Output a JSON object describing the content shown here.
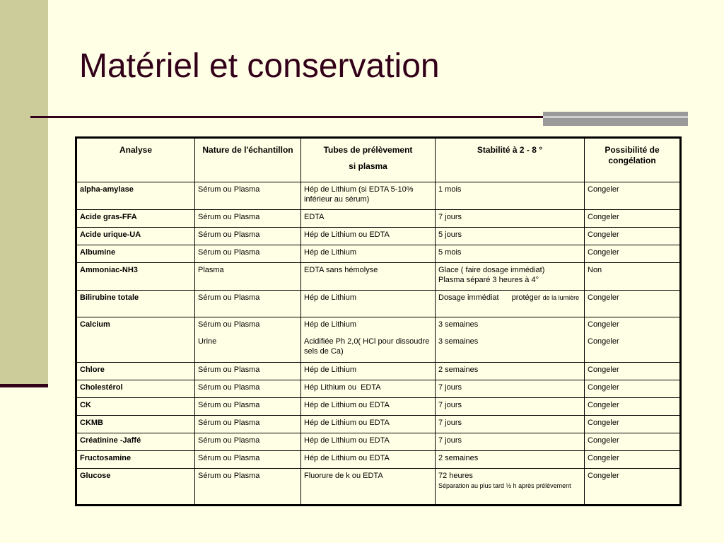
{
  "slide": {
    "title": "Matériel et conservation"
  },
  "table": {
    "headers": {
      "analyse": "Analyse",
      "nature": "Nature de l'échantillon",
      "tubes": "Tubes de prélèvement",
      "tubes_sub": "si plasma",
      "stabilite": "Stabilité à 2 - 8 °",
      "congelation": "Possibilité de congélation"
    },
    "rows": [
      {
        "analyse": "alpha-amylase",
        "nature": "Sérum ou Plasma",
        "tubes": "Hép de Lithium (si EDTA 5-10% inférieur au sérum)",
        "stabilite": "1 mois",
        "congelation": "Congeler"
      },
      {
        "analyse": "Acide gras-FFA",
        "nature": "Sérum ou Plasma",
        "tubes": "EDTA",
        "stabilite": "7 jours",
        "congelation": "Congeler"
      },
      {
        "analyse": "Acide urique-UA",
        "nature": "Sérum ou Plasma",
        "tubes": "Hép de Lithium ou EDTA",
        "stabilite": "5 jours",
        "congelation": "Congeler"
      },
      {
        "analyse": "Albumine",
        "nature": "Sérum ou Plasma",
        "tubes": "Hép de Lithium",
        "stabilite": "5 mois",
        "congelation": "Congeler"
      },
      {
        "analyse": "Ammoniac-NH3",
        "nature": "Plasma",
        "tubes": "EDTA sans hémolyse",
        "stabilite": "Glace ( faire dosage immédiat)",
        "stabilite_2": "Plasma séparé 3 heures à 4°",
        "congelation": "Non"
      },
      {
        "analyse": "Bilirubine totale",
        "nature": "Sérum ou Plasma",
        "tubes": "Hép de Lithium",
        "stabilite": "Dosage immédiat",
        "stabilite_2": "protéger",
        "stabilite_3": "de la lumière",
        "congelation": "Congeler"
      },
      {
        "analyse": "Calcium",
        "nature": "Sérum ou Plasma",
        "nature_2": "Urine",
        "tubes": "Hép de Lithium",
        "tubes_2": "Acidifiée Ph 2,0( HCl pour dissoudre sels de Ca)",
        "stabilite": "3 semaines",
        "stabilite_2": "3 semaines",
        "congelation": "Congeler",
        "congelation_2": "Congeler"
      },
      {
        "analyse": "Chlore",
        "nature": "Sérum ou Plasma",
        "tubes": "Hép de Lithium",
        "stabilite": "2 semaines",
        "congelation": "Congeler"
      },
      {
        "analyse": "Cholestérol",
        "nature": "Sérum ou Plasma",
        "tubes": "Hép Lithium ou  EDTA",
        "stabilite": "7 jours",
        "congelation": "Congeler"
      },
      {
        "analyse": "CK",
        "nature": "Sérum ou Plasma",
        "tubes": "Hép de Lithium ou EDTA",
        "stabilite": "7 jours",
        "congelation": "Congeler"
      },
      {
        "analyse": "CKMB",
        "nature": "Sérum ou Plasma",
        "tubes": "Hép de Lithium ou EDTA",
        "stabilite": "7 jours",
        "congelation": "Congeler"
      },
      {
        "analyse": "Créatinine -Jaffé",
        "nature": "Sérum ou Plasma",
        "tubes": "Hép de Lithium ou EDTA",
        "stabilite": "7 jours",
        "congelation": "Congeler"
      },
      {
        "analyse": "Fructosamine",
        "nature": "Sérum ou Plasma",
        "tubes": "Hép de Lithium ou EDTA",
        "stabilite": "2 semaines",
        "congelation": "Congeler"
      },
      {
        "analyse": "Glucose",
        "nature": "Sérum ou Plasma",
        "tubes": "Fluorure de k ou EDTA",
        "stabilite": "72 heures",
        "stabilite_2": "Séparation au plus tard ½ h après prélèvement",
        "congelation": "Congeler"
      }
    ]
  }
}
